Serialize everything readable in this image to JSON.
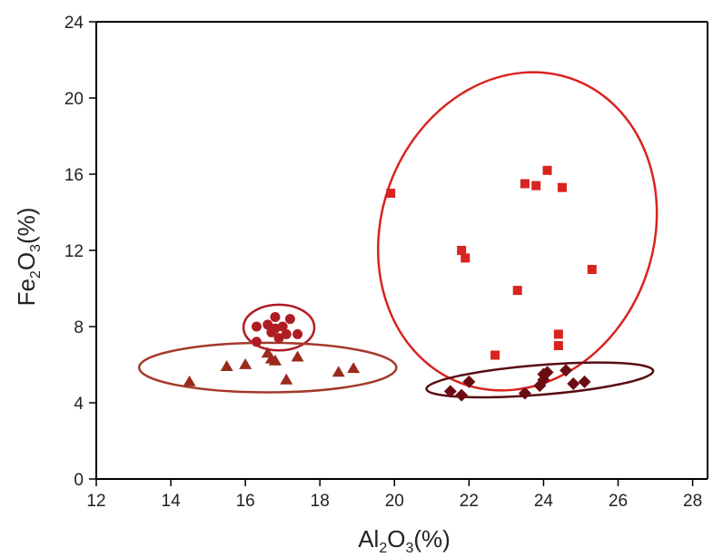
{
  "colors": {
    "axis": "#000000",
    "text": "#222222",
    "circle_series": "#b01c24",
    "triangle_series": "#9a2a1c",
    "square_series": "#d9231f",
    "diamond_series": "#6b0c12",
    "ellipse_red": "#d9231f",
    "ellipse_brown": "#a33a2a",
    "ellipse_dark": "#5a0c12",
    "ellipse_circle_group": "#b01c24"
  },
  "chart_data": {
    "type": "scatter",
    "xlabel": {
      "pre": "Al",
      "sub": "2",
      "post": "O",
      "sub2": "3",
      "tail": "(%)"
    },
    "ylabel": {
      "pre": "Fe",
      "sub": "2",
      "post": "O",
      "sub2": "3",
      "tail": "(%)"
    },
    "xlim": [
      12,
      28.4
    ],
    "ylim": [
      0,
      24
    ],
    "xticks": [
      "12",
      "14",
      "16",
      "18",
      "20",
      "22",
      "24",
      "26",
      "28"
    ],
    "yticks": [
      "0",
      "4",
      "8",
      "12",
      "16",
      "20",
      "24"
    ],
    "grid": false,
    "series": [
      {
        "marker": "circle",
        "color": "#b01c24",
        "points": [
          [
            16.3,
            8.0
          ],
          [
            16.8,
            8.5
          ],
          [
            17.2,
            8.4
          ],
          [
            16.6,
            8.1
          ],
          [
            17.0,
            8.0
          ],
          [
            16.7,
            7.7
          ],
          [
            17.1,
            7.6
          ],
          [
            17.4,
            7.6
          ],
          [
            16.9,
            7.4
          ],
          [
            16.3,
            7.2
          ],
          [
            16.8,
            7.9
          ]
        ]
      },
      {
        "marker": "triangle",
        "color": "#9a2a1c",
        "points": [
          [
            14.5,
            5.1
          ],
          [
            15.5,
            5.9
          ],
          [
            16.0,
            6.0
          ],
          [
            16.6,
            6.6
          ],
          [
            16.7,
            6.3
          ],
          [
            16.8,
            6.2
          ],
          [
            17.1,
            5.2
          ],
          [
            17.4,
            6.4
          ],
          [
            18.5,
            5.6
          ],
          [
            18.9,
            5.8
          ]
        ]
      },
      {
        "marker": "square",
        "color": "#d9231f",
        "points": [
          [
            19.9,
            15.0
          ],
          [
            23.5,
            15.5
          ],
          [
            23.8,
            15.4
          ],
          [
            24.1,
            16.2
          ],
          [
            24.5,
            15.3
          ],
          [
            21.8,
            12.0
          ],
          [
            21.9,
            11.6
          ],
          [
            25.3,
            11.0
          ],
          [
            23.3,
            9.9
          ],
          [
            24.4,
            7.6
          ],
          [
            24.4,
            7.0
          ],
          [
            22.7,
            6.5
          ]
        ]
      },
      {
        "marker": "diamond",
        "color": "#6b0c12",
        "points": [
          [
            21.5,
            4.6
          ],
          [
            21.8,
            4.4
          ],
          [
            22.0,
            5.1
          ],
          [
            23.5,
            4.5
          ],
          [
            23.9,
            4.9
          ],
          [
            24.0,
            5.2
          ],
          [
            24.0,
            5.5
          ],
          [
            24.1,
            5.6
          ],
          [
            24.6,
            5.7
          ],
          [
            24.8,
            5.0
          ],
          [
            25.1,
            5.1
          ]
        ]
      }
    ],
    "ellipses": [
      {
        "group": "circle",
        "color": "#b01c24",
        "center": [
          16.9,
          7.95
        ],
        "rx": 0.95,
        "ry": 1.2,
        "tilt": 0
      },
      {
        "group": "triangle",
        "color": "#a33a2a",
        "center": [
          16.6,
          5.85
        ],
        "rx": 3.45,
        "ry": 1.3,
        "tilt": 0
      },
      {
        "group": "square",
        "color": "#d9231f",
        "center": [
          23.3,
          13.0
        ],
        "rx": 3.65,
        "ry": 8.5,
        "tilt": -0.35
      },
      {
        "group": "diamond",
        "color": "#5a0c12",
        "center": [
          23.9,
          5.2
        ],
        "rx": 3.05,
        "ry": 0.78,
        "tilt": 0.08
      }
    ]
  }
}
